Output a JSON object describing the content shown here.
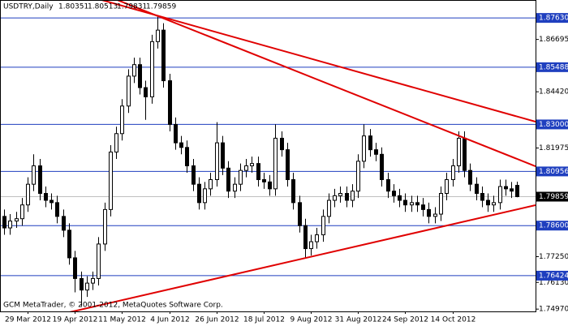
{
  "chart_data": {
    "type": "candlestick",
    "title": "USDTRY,Daily",
    "footer": "GCM MetaTrader, © 2001-2012, MetaQuotes Software Corp.",
    "categories": [
      null,
      null,
      null,
      null,
      "29 Mar 2012",
      null,
      null,
      null,
      null,
      null,
      null,
      null,
      "19 Apr 2012",
      null,
      null,
      null,
      null,
      null,
      null,
      null,
      "11 May 2012",
      null,
      null,
      null,
      null,
      null,
      null,
      null,
      "4 Jun 2012",
      null,
      null,
      null,
      null,
      null,
      null,
      null,
      "26 Jun 2012",
      null,
      null,
      null,
      null,
      null,
      null,
      null,
      "18 Jul 2012",
      null,
      null,
      null,
      null,
      null,
      null,
      null,
      "9 Aug 2012",
      null,
      null,
      null,
      null,
      null,
      null,
      null,
      "31 Aug 2012",
      null,
      null,
      null,
      null,
      null,
      null,
      null,
      "24 Sep 2012",
      null,
      null,
      null,
      null,
      null,
      null,
      null,
      "14 Oct 2012",
      null,
      null,
      null,
      null,
      null,
      null,
      null,
      null,
      null,
      null,
      null
    ],
    "open": [
      1.79,
      1.785,
      1.788,
      1.789,
      1.795,
      1.804,
      1.812,
      1.8,
      1.797,
      1.796,
      1.79,
      1.784,
      1.772,
      1.763,
      1.758,
      1.761,
      1.763,
      1.778,
      1.793,
      1.818,
      1.826,
      1.838,
      1.851,
      1.856,
      1.846,
      1.842,
      1.866,
      1.871,
      1.849,
      1.83,
      1.822,
      1.82,
      1.812,
      1.804,
      1.796,
      1.802,
      1.806,
      1.822,
      1.811,
      1.801,
      1.804,
      1.81,
      1.812,
      1.813,
      1.806,
      1.805,
      1.802,
      1.824,
      1.819,
      1.806,
      1.796,
      1.786,
      1.776,
      1.779,
      1.782,
      1.79,
      1.797,
      1.799,
      1.8,
      1.797,
      1.801,
      1.814,
      1.825,
      1.819,
      1.817,
      1.806,
      1.801,
      1.799,
      1.797,
      1.795,
      1.796,
      1.795,
      1.793,
      1.79,
      1.791,
      1.8,
      1.806,
      1.812,
      1.824,
      1.81,
      1.804,
      1.8,
      1.797,
      1.795,
      1.796,
      1.803,
      1.802,
      1.80351
    ],
    "high": [
      1.793,
      1.791,
      1.792,
      1.798,
      1.807,
      1.817,
      1.815,
      1.803,
      1.8,
      1.799,
      1.793,
      1.787,
      1.775,
      1.766,
      1.764,
      1.766,
      1.781,
      1.796,
      1.821,
      1.829,
      1.841,
      1.854,
      1.859,
      1.859,
      1.849,
      1.869,
      1.877,
      1.874,
      1.852,
      1.833,
      1.825,
      1.823,
      1.815,
      1.807,
      1.805,
      1.809,
      1.831,
      1.825,
      1.814,
      1.807,
      1.813,
      1.815,
      1.816,
      1.816,
      1.809,
      1.808,
      1.83,
      1.827,
      1.822,
      1.809,
      1.799,
      1.789,
      1.782,
      1.785,
      1.793,
      1.8,
      1.802,
      1.803,
      1.803,
      1.804,
      1.817,
      1.83,
      1.828,
      1.822,
      1.82,
      1.809,
      1.804,
      1.802,
      1.8,
      1.799,
      1.799,
      1.798,
      1.796,
      1.794,
      1.803,
      1.809,
      1.815,
      1.827,
      1.827,
      1.813,
      1.807,
      1.803,
      1.8,
      1.799,
      1.806,
      1.806,
      1.805,
      1.80513
    ],
    "low": [
      1.782,
      1.782,
      1.785,
      1.786,
      1.792,
      1.801,
      1.797,
      1.794,
      1.793,
      1.787,
      1.781,
      1.769,
      1.757,
      1.751,
      1.755,
      1.758,
      1.76,
      1.775,
      1.79,
      1.815,
      1.823,
      1.835,
      1.848,
      1.843,
      1.832,
      1.839,
      1.863,
      1.846,
      1.827,
      1.819,
      1.817,
      1.809,
      1.801,
      1.793,
      1.793,
      1.799,
      1.803,
      1.808,
      1.798,
      1.798,
      1.801,
      1.807,
      1.809,
      1.803,
      1.802,
      1.799,
      1.799,
      1.816,
      1.803,
      1.793,
      1.783,
      1.772,
      1.773,
      1.776,
      1.779,
      1.787,
      1.794,
      1.796,
      1.794,
      1.794,
      1.798,
      1.811,
      1.816,
      1.814,
      1.803,
      1.798,
      1.796,
      1.794,
      1.792,
      1.792,
      1.792,
      1.79,
      1.787,
      1.787,
      1.788,
      1.797,
      1.803,
      1.809,
      1.807,
      1.801,
      1.797,
      1.794,
      1.792,
      1.792,
      1.793,
      1.799,
      1.798,
      1.79831
    ],
    "close": [
      1.785,
      1.788,
      1.789,
      1.795,
      1.804,
      1.812,
      1.8,
      1.797,
      1.796,
      1.79,
      1.784,
      1.772,
      1.763,
      1.758,
      1.761,
      1.763,
      1.778,
      1.793,
      1.818,
      1.826,
      1.838,
      1.851,
      1.856,
      1.846,
      1.842,
      1.866,
      1.871,
      1.849,
      1.83,
      1.822,
      1.82,
      1.812,
      1.804,
      1.796,
      1.802,
      1.806,
      1.822,
      1.811,
      1.801,
      1.804,
      1.81,
      1.812,
      1.813,
      1.806,
      1.805,
      1.802,
      1.824,
      1.819,
      1.806,
      1.796,
      1.786,
      1.776,
      1.779,
      1.782,
      1.79,
      1.797,
      1.799,
      1.8,
      1.797,
      1.801,
      1.814,
      1.825,
      1.819,
      1.817,
      1.806,
      1.801,
      1.799,
      1.797,
      1.795,
      1.796,
      1.795,
      1.793,
      1.79,
      1.791,
      1.8,
      1.806,
      1.812,
      1.824,
      1.81,
      1.804,
      1.8,
      1.797,
      1.795,
      1.796,
      1.803,
      1.802,
      1.801,
      1.79859
    ],
    "ylim": [
      1.7487,
      1.8841
    ],
    "yticks": [
      1.86695,
      {
        "value": 1.8442,
        "label": "1.84420"
      },
      1.81975,
      {
        "value": 1.7725,
        "label": "1.77250"
      },
      {
        "value": 1.7613,
        "label": "1.76130"
      },
      {
        "value": 1.7497,
        "label": "1.74970"
      }
    ],
    "levels": [
      {
        "value": 1.8763,
        "label": "1.87630"
      },
      1.85488,
      {
        "value": 1.83,
        "label": "1.83000"
      },
      1.80956,
      {
        "value": 1.786,
        "label": "1.78600"
      },
      1.76424
    ],
    "trendlines": [
      {
        "start": 1.7414,
        "end": 1.7949
      },
      {
        "start": 1.9044,
        "end": 1.8118
      },
      {
        "start": 1.8965,
        "end": 1.8312
      }
    ],
    "up_color": "#ffffff",
    "down_color": "#000000",
    "level_color": "#1f3fbf",
    "trendline_color": "#e00000",
    "grid": false
  }
}
